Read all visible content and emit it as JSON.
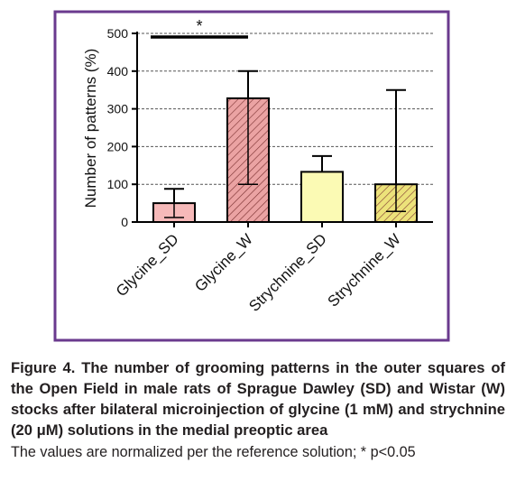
{
  "chart_data": {
    "type": "bar",
    "ylabel": "Number of patterns (%)",
    "categories": [
      "Glycine_SD",
      "Glycine_W",
      "Strychnine_SD",
      "Strychnine_W"
    ],
    "values": [
      50,
      328,
      133,
      100
    ],
    "error_upper": [
      38,
      72,
      42,
      250
    ],
    "error_lower": [
      38,
      228,
      null,
      72
    ],
    "colors": [
      "#f6b9b9",
      "#eba3a3",
      "#fbfab4",
      "#ece27a"
    ],
    "hatched": [
      false,
      true,
      false,
      true
    ],
    "ylim": [
      0,
      500
    ],
    "yticks": [
      0,
      100,
      200,
      300,
      400,
      500
    ],
    "grid": true,
    "annotation": "*"
  },
  "caption": {
    "title": "Figure 4. The number of grooming patterns in the outer squares of the Open Field in male rats of Sprague Dawley (SD) and Wistar (W) stocks after bilateral microinjection of glycine (1 mM) and strychnine (20 μM) solutions in the medial preoptic area",
    "note": "The values are normalized per the reference solution; * p<0.05"
  }
}
